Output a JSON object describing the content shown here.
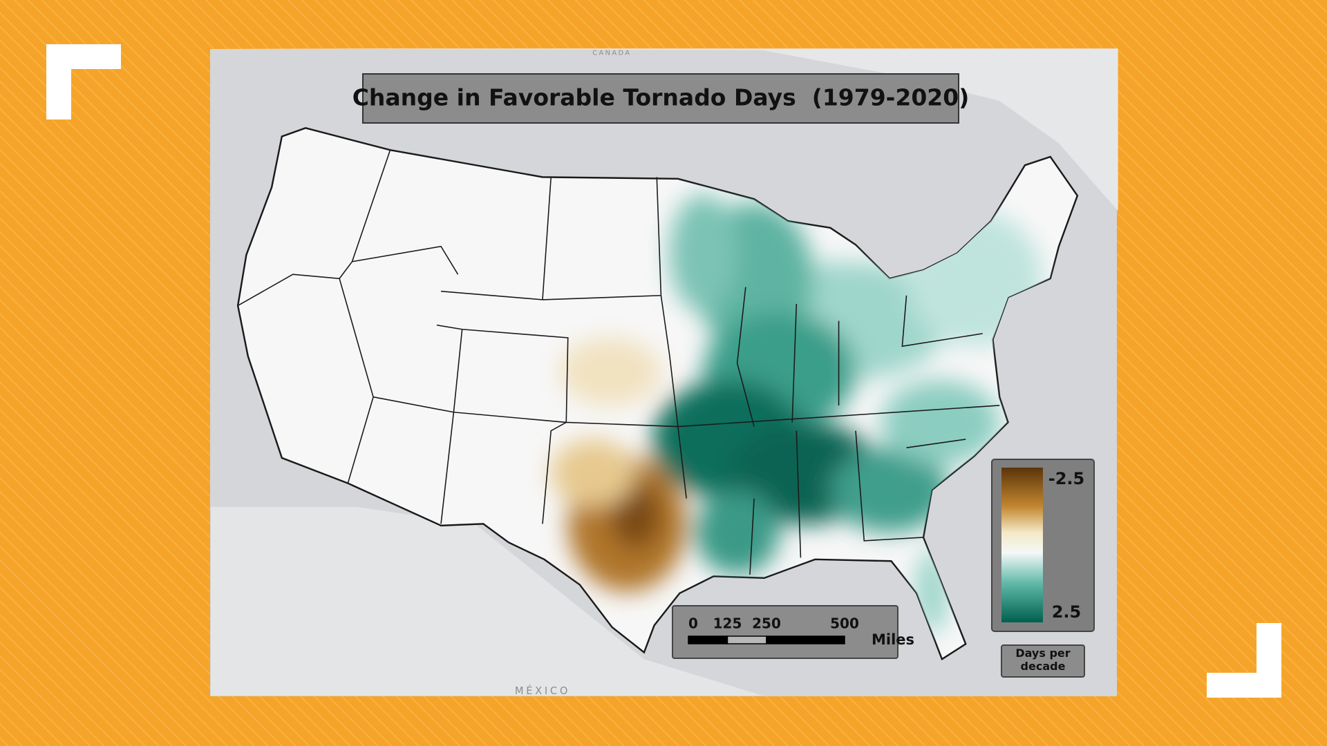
{
  "map": {
    "title": "Change in Favorable Tornado Days  (1979-2020)",
    "labels": {
      "north": "CANADA",
      "south": "MÉXICO"
    },
    "legend": {
      "top": -2.5,
      "bottom": 2.5,
      "unit": "Days per decade"
    },
    "scale_bar": {
      "ticks": [
        0,
        125,
        250,
        500
      ],
      "unit": "Miles"
    }
  }
}
